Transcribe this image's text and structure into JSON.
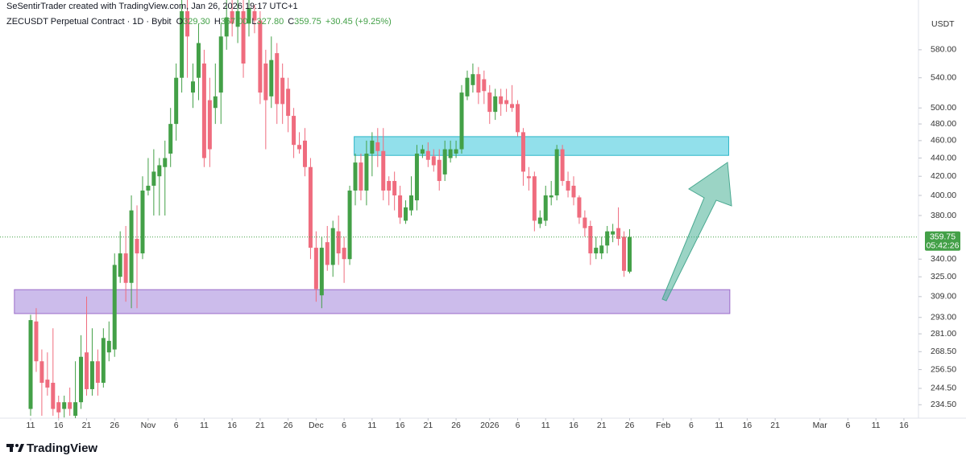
{
  "chart_data": {
    "type": "candlestick",
    "title": "SeSentirTrader created with TradingView.com, Jan 26, 2026 19:17 UTC+1",
    "subtitle": "ZECUSDT Perpetual Contract · 1D · Bybit",
    "ohlc_labels": [
      "O",
      "H",
      "L",
      "C"
    ],
    "ohlc_value_labels": [
      "329.30",
      "367.00",
      "327.80",
      "359.75"
    ],
    "change_label": "+30.45 (+9.25%)",
    "y_label": "USDT",
    "countdown": "05:42:26",
    "log_scale": true,
    "grid": false,
    "up_color": "#43a047",
    "down_color": "#ef6c7e",
    "x": [
      11,
      12,
      13,
      14,
      15,
      16,
      17,
      18,
      19,
      20,
      21,
      22,
      23,
      24,
      25,
      26,
      27,
      28,
      29,
      30,
      31,
      32,
      33,
      34,
      35,
      36,
      37,
      38,
      39,
      40,
      41,
      42,
      43,
      44,
      45,
      46,
      47,
      48,
      49,
      50,
      51,
      52,
      53,
      54,
      55,
      56,
      57,
      58,
      59,
      60,
      61,
      62,
      63,
      64,
      65,
      66,
      67,
      68,
      69,
      70,
      71,
      72,
      73,
      74,
      75,
      76,
      77,
      78,
      79,
      80,
      81,
      82,
      83,
      84,
      85,
      86,
      87,
      88,
      89,
      90,
      91,
      92,
      93,
      94,
      95,
      96,
      97,
      98,
      99,
      100,
      101,
      102,
      103,
      104,
      105,
      106,
      107,
      108,
      109,
      110,
      111,
      112,
      113,
      114,
      115,
      116,
      117,
      118
    ],
    "open": [
      232,
      290,
      262,
      250,
      248,
      236,
      232,
      236,
      228,
      236,
      268,
      244,
      262,
      248,
      268,
      270,
      325,
      345,
      320,
      358,
      345,
      405,
      410,
      420,
      430,
      445,
      480,
      540,
      640,
      520,
      540,
      560,
      510,
      500,
      520,
      600,
      640,
      615,
      640,
      620,
      640,
      625,
      560,
      515,
      575,
      540,
      525,
      490,
      455,
      460,
      430,
      350,
      310,
      355,
      335,
      365,
      350,
      340,
      405,
      435,
      405,
      445,
      458,
      448,
      415,
      415,
      400,
      375,
      385,
      395,
      445,
      448,
      442,
      438,
      422,
      440,
      445,
      450,
      515,
      530,
      545,
      538,
      520,
      495,
      515,
      510,
      505,
      505,
      470,
      420,
      420,
      372,
      375,
      398,
      400,
      450,
      415,
      410,
      398,
      378,
      370,
      345,
      345,
      352,
      362,
      368,
      360,
      329.3
    ],
    "high": [
      295,
      300,
      270,
      268,
      285,
      240,
      240,
      245,
      262,
      280,
      309,
      285,
      270,
      285,
      290,
      345,
      365,
      370,
      400,
      390,
      420,
      440,
      450,
      440,
      460,
      500,
      560,
      660,
      665,
      560,
      620,
      580,
      540,
      560,
      620,
      660,
      660,
      660,
      660,
      660,
      650,
      640,
      580,
      600,
      590,
      560,
      540,
      500,
      470,
      475,
      440,
      365,
      360,
      370,
      375,
      380,
      360,
      410,
      445,
      445,
      460,
      470,
      475,
      475,
      420,
      425,
      410,
      395,
      420,
      455,
      455,
      458,
      450,
      450,
      460,
      460,
      460,
      530,
      550,
      560,
      555,
      550,
      530,
      525,
      525,
      525,
      530,
      510,
      475,
      430,
      425,
      385,
      410,
      415,
      455,
      455,
      425,
      420,
      400,
      385,
      375,
      360,
      360,
      370,
      372,
      388,
      365,
      367
    ],
    "low": [
      228,
      255,
      228,
      240,
      228,
      226,
      227,
      228,
      226,
      232,
      240,
      240,
      240,
      245,
      262,
      265,
      320,
      305,
      300,
      300,
      340,
      400,
      380,
      380,
      380,
      430,
      460,
      520,
      540,
      500,
      510,
      430,
      430,
      480,
      480,
      580,
      600,
      590,
      540,
      600,
      605,
      505,
      450,
      500,
      480,
      480,
      470,
      440,
      445,
      420,
      340,
      305,
      300,
      330,
      325,
      335,
      320,
      335,
      390,
      395,
      390,
      420,
      430,
      395,
      390,
      385,
      372,
      372,
      380,
      385,
      440,
      430,
      425,
      405,
      415,
      435,
      440,
      445,
      510,
      520,
      505,
      505,
      480,
      485,
      490,
      495,
      495,
      465,
      410,
      405,
      365,
      368,
      370,
      390,
      395,
      410,
      398,
      390,
      372,
      360,
      335,
      340,
      340,
      345,
      355,
      352,
      325,
      327.8
    ],
    "close": [
      291,
      262,
      248,
      245,
      232,
      230,
      236,
      232,
      236,
      265,
      244,
      262,
      248,
      278,
      276,
      335,
      345,
      320,
      385,
      345,
      405,
      410,
      425,
      432,
      440,
      480,
      540,
      640,
      600,
      535,
      590,
      440,
      450,
      515,
      600,
      630,
      620,
      640,
      560,
      645,
      625,
      520,
      510,
      565,
      505,
      505,
      490,
      455,
      450,
      430,
      350,
      315,
      350,
      335,
      368,
      345,
      340,
      405,
      435,
      405,
      445,
      460,
      448,
      405,
      405,
      400,
      378,
      388,
      400,
      445,
      450,
      438,
      432,
      415,
      450,
      450,
      450,
      520,
      540,
      545,
      520,
      522,
      495,
      515,
      505,
      505,
      500,
      470,
      425,
      418,
      375,
      378,
      400,
      400,
      450,
      415,
      405,
      398,
      378,
      368,
      345,
      350,
      352,
      365,
      365,
      358,
      330,
      359.75
    ],
    "xlim": [
      5.53,
      169.6
    ],
    "ylim": [
      226.6,
      658.5
    ],
    "yticks": [
      {
        "value": 580,
        "label": "580.00"
      },
      {
        "value": 540,
        "label": "540.00"
      },
      {
        "value": 500,
        "label": "500.00"
      },
      {
        "value": 480,
        "label": "480.00"
      },
      {
        "value": 460,
        "label": "460.00"
      },
      {
        "value": 440,
        "label": "440.00"
      },
      {
        "value": 420,
        "label": "420.00"
      },
      {
        "value": 400,
        "label": "400.00"
      },
      {
        "value": 380,
        "label": "380.00"
      },
      {
        "value": 340,
        "label": "340.00"
      },
      {
        "value": 325,
        "label": "325.00"
      },
      {
        "value": 309,
        "label": "309.00"
      },
      {
        "value": 293,
        "label": "293.00"
      },
      {
        "value": 281,
        "label": "281.00"
      },
      {
        "value": 268.5,
        "label": "268.50"
      },
      {
        "value": 256.5,
        "label": "256.50"
      },
      {
        "value": 244.5,
        "label": "244.50"
      },
      {
        "value": 234.5,
        "label": "234.50"
      }
    ],
    "xticks": [
      {
        "value": 11,
        "label": "11"
      },
      {
        "value": 16,
        "label": "16"
      },
      {
        "value": 21,
        "label": "21"
      },
      {
        "value": 26,
        "label": "26"
      },
      {
        "value": 32,
        "label": "Nov"
      },
      {
        "value": 37,
        "label": "6"
      },
      {
        "value": 42,
        "label": "11"
      },
      {
        "value": 47,
        "label": "16"
      },
      {
        "value": 52,
        "label": "21"
      },
      {
        "value": 57,
        "label": "26"
      },
      {
        "value": 62,
        "label": "Dec"
      },
      {
        "value": 67,
        "label": "6"
      },
      {
        "value": 72,
        "label": "11"
      },
      {
        "value": 77,
        "label": "16"
      },
      {
        "value": 82,
        "label": "21"
      },
      {
        "value": 87,
        "label": "26"
      },
      {
        "value": 93,
        "label": "2026"
      },
      {
        "value": 98,
        "label": "6"
      },
      {
        "value": 103,
        "label": "11"
      },
      {
        "value": 108,
        "label": "16"
      },
      {
        "value": 113,
        "label": "21"
      },
      {
        "value": 118,
        "label": "26"
      },
      {
        "value": 124,
        "label": "Feb"
      },
      {
        "value": 129,
        "label": "6"
      },
      {
        "value": 134,
        "label": "11"
      },
      {
        "value": 139,
        "label": "16"
      },
      {
        "value": 144,
        "label": "21"
      },
      {
        "value": 152,
        "label": "Mar"
      },
      {
        "value": 157,
        "label": "6"
      },
      {
        "value": 162,
        "label": "11"
      },
      {
        "value": 167,
        "label": "16"
      }
    ],
    "zones": [
      {
        "color": "#7fdbe8",
        "xlim": [
          68.8,
          135.7
        ],
        "ylim": [
          443,
          464.7
        ]
      },
      {
        "color": "#c3b0e8",
        "xlim": [
          8.1,
          135.9
        ],
        "ylim": [
          295.9,
          314.5
        ]
      }
    ]
  },
  "footer": {
    "brand": "TradingView"
  }
}
